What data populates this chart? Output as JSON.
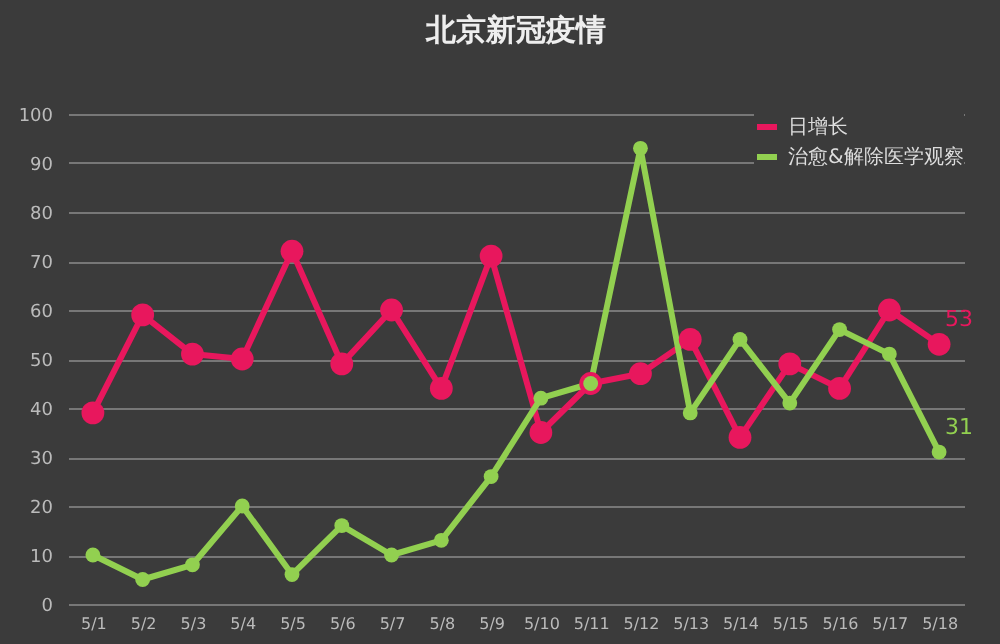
{
  "chart_data": {
    "type": "line",
    "title": "北京新冠疫情",
    "categories": [
      "5/1",
      "5/2",
      "5/3",
      "5/4",
      "5/5",
      "5/6",
      "5/7",
      "5/8",
      "5/9",
      "5/10",
      "5/11",
      "5/12",
      "5/13",
      "5/14",
      "5/15",
      "5/16",
      "5/17",
      "5/18"
    ],
    "series": [
      {
        "name": "日增长",
        "color": "#e8175d",
        "values": [
          39,
          59,
          51,
          50,
          72,
          49,
          60,
          44,
          71,
          35,
          45,
          47,
          54,
          34,
          49,
          44,
          60,
          53
        ],
        "value_labels": [
          null,
          null,
          null,
          null,
          null,
          null,
          null,
          null,
          null,
          null,
          null,
          null,
          null,
          null,
          null,
          null,
          null,
          "53"
        ]
      },
      {
        "name": "治愈&解除医学观察",
        "color": "#92d050",
        "values": [
          10,
          5,
          8,
          20,
          6,
          16,
          10,
          13,
          26,
          42,
          45,
          93,
          39,
          54,
          41,
          56,
          51,
          31
        ],
        "value_labels": [
          null,
          null,
          null,
          null,
          null,
          null,
          null,
          null,
          null,
          null,
          null,
          null,
          null,
          null,
          null,
          null,
          null,
          "31"
        ]
      }
    ],
    "ylim": [
      0,
      100
    ],
    "yticks": [
      0,
      10,
      20,
      30,
      40,
      50,
      60,
      70,
      80,
      90,
      100
    ],
    "grid": "y",
    "legend": "top right",
    "marker": "circle"
  }
}
